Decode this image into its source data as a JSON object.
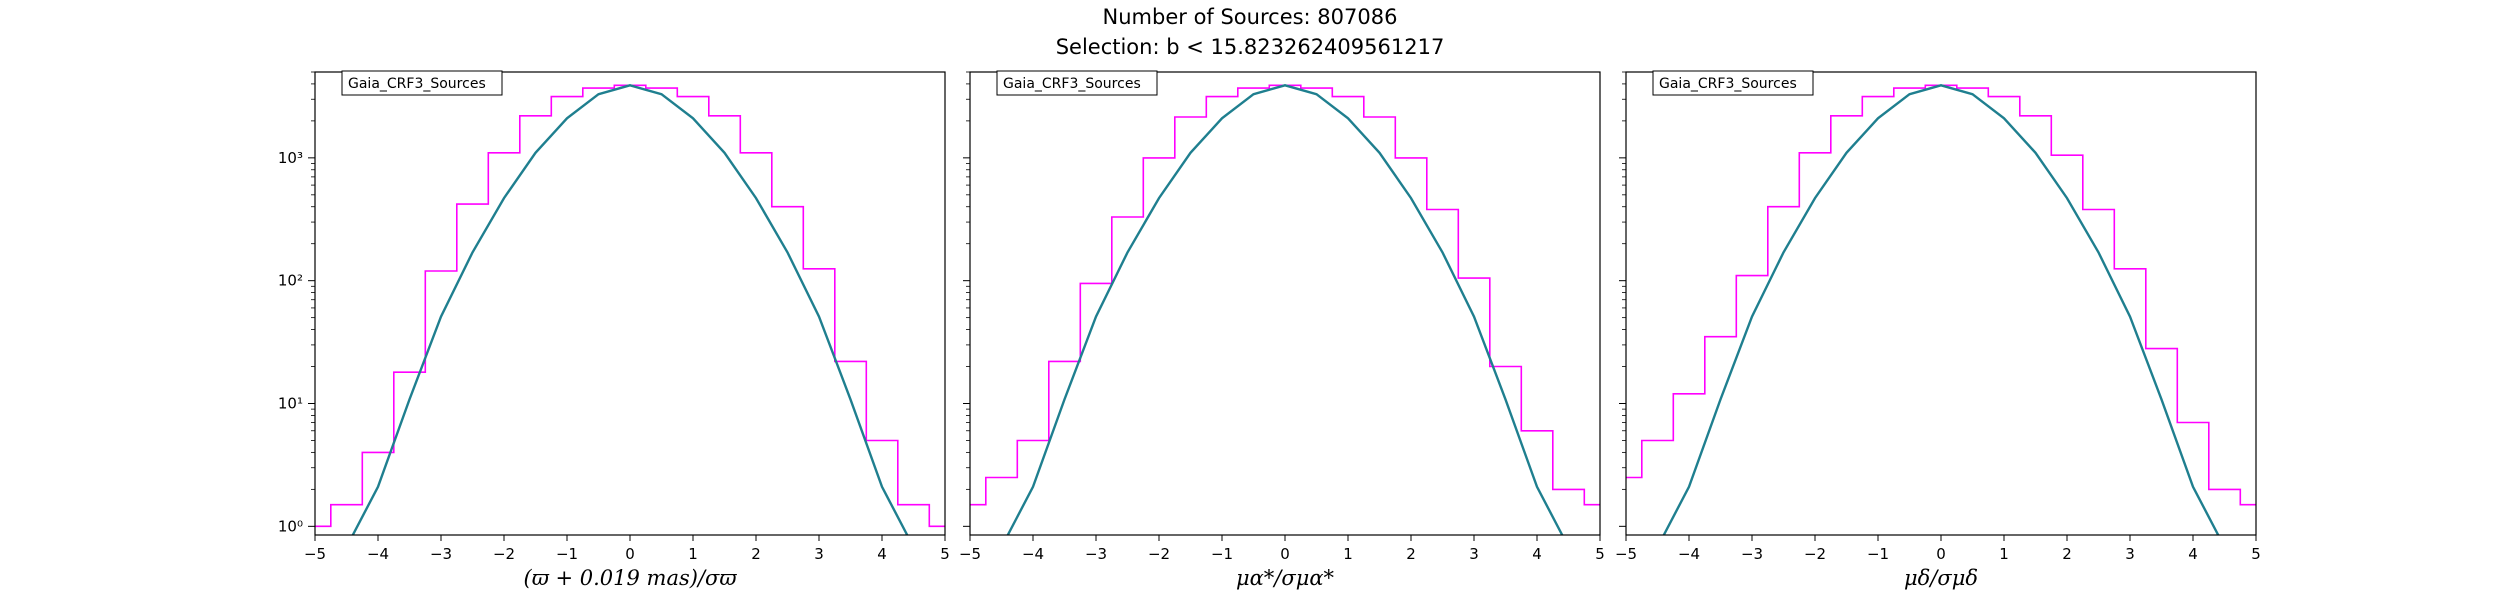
{
  "figure": {
    "title_line1": "Number of Sources: 807086",
    "title_line2": "Selection: b < 15.823262409561217"
  },
  "colors": {
    "histogram": "#ff00ff",
    "fit_curve": "#1f7f8f",
    "axes": "#000000"
  },
  "chart_data": [
    {
      "type": "line",
      "legend": "Gaia_CRF3_Sources",
      "xlabel": "(ϖ + 0.019 mas)/σϖ",
      "ylabel": "",
      "xlim": [
        -5,
        5
      ],
      "ylim": [
        0.85,
        5000
      ],
      "yscale": "log",
      "xticks": [
        -5,
        -4,
        -3,
        -2,
        -1,
        0,
        1,
        2,
        3,
        4,
        5
      ],
      "yticks": [
        "10⁰",
        "10¹",
        "10²",
        "10³"
      ],
      "series": [
        {
          "kind": "step-histogram",
          "x": [
            -5.0,
            -4.5,
            -4.0,
            -3.5,
            -3.0,
            -2.5,
            -2.0,
            -1.5,
            -1.0,
            -0.5,
            0.0,
            0.5,
            1.0,
            1.5,
            2.0,
            2.5,
            3.0,
            3.5,
            4.0,
            4.5,
            5.0
          ],
          "y": [
            1,
            1.5,
            4,
            18,
            120,
            420,
            1100,
            2200,
            3150,
            3700,
            3900,
            3700,
            3150,
            2200,
            1100,
            400,
            125,
            22,
            5,
            1.5,
            1
          ]
        },
        {
          "kind": "gaussian-fit",
          "x": [
            -4.4,
            -4.0,
            -3.5,
            -3.0,
            -2.5,
            -2.0,
            -1.5,
            -1.0,
            -0.5,
            0.0,
            0.5,
            1.0,
            1.5,
            2.0,
            2.5,
            3.0,
            3.5,
            4.0,
            4.4
          ],
          "y": [
            0.85,
            2.1,
            10.8,
            51,
            170,
            470,
            1100,
            2100,
            3300,
            3900,
            3300,
            2100,
            1100,
            470,
            170,
            51,
            10.8,
            2.1,
            0.85
          ]
        }
      ]
    },
    {
      "type": "line",
      "legend": "Gaia_CRF3_Sources",
      "xlabel": "μα*/σμα*",
      "ylabel": "",
      "xlim": [
        -5,
        5
      ],
      "ylim": [
        0.85,
        5000
      ],
      "yscale": "log",
      "xticks": [
        -5,
        -4,
        -3,
        -2,
        -1,
        0,
        1,
        2,
        3,
        4,
        5
      ],
      "yticks": [],
      "series": [
        {
          "kind": "step-histogram",
          "x": [
            -5.0,
            -4.5,
            -4.0,
            -3.5,
            -3.0,
            -2.5,
            -2.0,
            -1.5,
            -1.0,
            -0.5,
            0.0,
            0.5,
            1.0,
            1.5,
            2.0,
            2.5,
            3.0,
            3.5,
            4.0,
            4.5,
            5.0
          ],
          "y": [
            1.5,
            2.5,
            5,
            22,
            95,
            330,
            1000,
            2150,
            3150,
            3700,
            3900,
            3700,
            3150,
            2150,
            1000,
            380,
            105,
            20,
            6,
            2,
            1.5
          ]
        },
        {
          "kind": "gaussian-fit",
          "x": [
            -4.4,
            -4.0,
            -3.5,
            -3.0,
            -2.5,
            -2.0,
            -1.5,
            -1.0,
            -0.5,
            0.0,
            0.5,
            1.0,
            1.5,
            2.0,
            2.5,
            3.0,
            3.5,
            4.0,
            4.4
          ],
          "y": [
            0.85,
            2.1,
            10.8,
            51,
            170,
            470,
            1100,
            2100,
            3300,
            3900,
            3300,
            2100,
            1100,
            470,
            170,
            51,
            10.8,
            2.1,
            0.85
          ]
        }
      ]
    },
    {
      "type": "line",
      "legend": "Gaia_CRF3_Sources",
      "xlabel": "μδ/σμδ",
      "ylabel": "",
      "xlim": [
        -5,
        5
      ],
      "ylim": [
        0.85,
        5000
      ],
      "yscale": "log",
      "xticks": [
        -5,
        -4,
        -3,
        -2,
        -1,
        0,
        1,
        2,
        3,
        4,
        5
      ],
      "yticks": [],
      "series": [
        {
          "kind": "step-histogram",
          "x": [
            -5.0,
            -4.5,
            -4.0,
            -3.5,
            -3.0,
            -2.5,
            -2.0,
            -1.5,
            -1.0,
            -0.5,
            0.0,
            0.5,
            1.0,
            1.5,
            2.0,
            2.5,
            3.0,
            3.5,
            4.0,
            4.5,
            5.0
          ],
          "y": [
            2.5,
            5,
            12,
            35,
            110,
            400,
            1100,
            2200,
            3150,
            3700,
            3900,
            3700,
            3150,
            2200,
            1050,
            380,
            125,
            28,
            7,
            2,
            1.5
          ]
        },
        {
          "kind": "gaussian-fit",
          "x": [
            -4.4,
            -4.0,
            -3.5,
            -3.0,
            -2.5,
            -2.0,
            -1.5,
            -1.0,
            -0.5,
            0.0,
            0.5,
            1.0,
            1.5,
            2.0,
            2.5,
            3.0,
            3.5,
            4.0,
            4.4
          ],
          "y": [
            0.85,
            2.1,
            10.8,
            51,
            170,
            470,
            1100,
            2100,
            3300,
            3900,
            3300,
            2100,
            1100,
            470,
            170,
            51,
            10.8,
            2.1,
            0.85
          ]
        }
      ]
    }
  ]
}
